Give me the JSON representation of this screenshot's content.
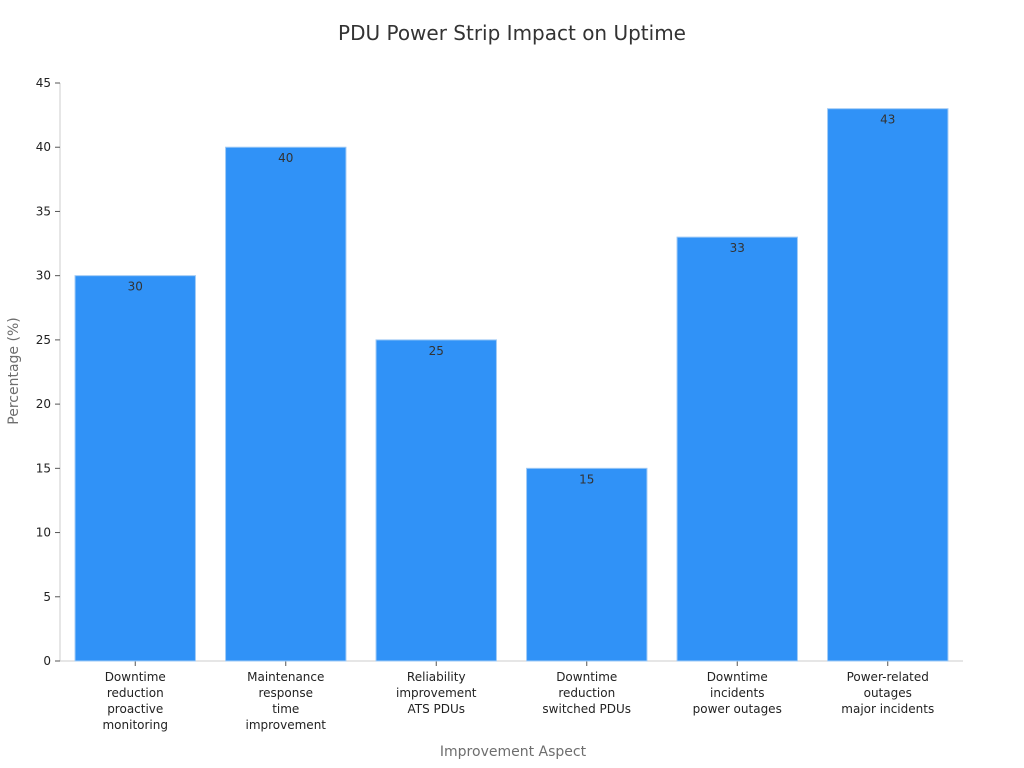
{
  "chart_data": {
    "type": "bar",
    "title": "PDU Power Strip Impact on Uptime",
    "xlabel": "Improvement Aspect",
    "ylabel": "Percentage (%)",
    "ylim": [
      0,
      45
    ],
    "yticks": [
      0,
      5,
      10,
      15,
      20,
      25,
      30,
      35,
      40,
      45
    ],
    "categories": [
      [
        "Downtime",
        "reduction",
        "proactive",
        "monitoring"
      ],
      [
        "Maintenance",
        "response",
        "time",
        "improvement"
      ],
      [
        "Reliability",
        "improvement",
        "ATS PDUs"
      ],
      [
        "Downtime",
        "reduction",
        "switched PDUs"
      ],
      [
        "Downtime",
        "incidents",
        "power outages"
      ],
      [
        "Power-related",
        "outages",
        "major incidents"
      ]
    ],
    "values": [
      30,
      40,
      25,
      15,
      33,
      43
    ],
    "bar_color": "#3092f7",
    "data_labels": true,
    "grid": false,
    "legend": "none"
  }
}
